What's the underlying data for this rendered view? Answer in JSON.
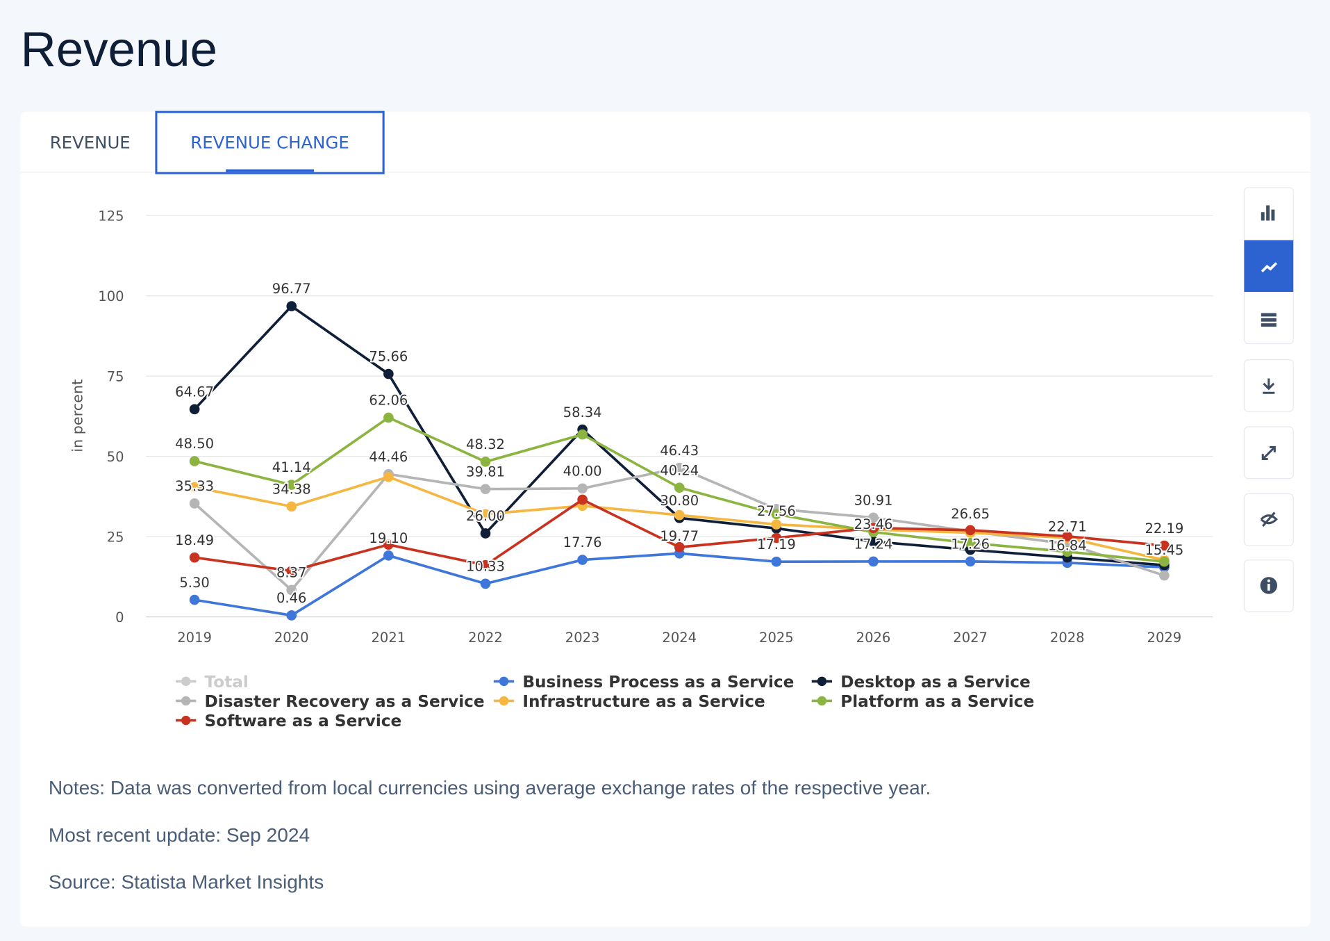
{
  "page_title": "Revenue",
  "tabs": [
    "REVENUE",
    "REVENUE CHANGE"
  ],
  "chart_data": {
    "type": "line",
    "y_label": "in percent",
    "categories": [
      "2019",
      "2020",
      "2021",
      "2022",
      "2023",
      "2024",
      "2025",
      "2026",
      "2027",
      "2028",
      "2029"
    ],
    "ylim": [
      0,
      125
    ],
    "yticks": [
      0,
      25,
      50,
      75,
      100,
      125
    ],
    "grid": true,
    "series": [
      {
        "name": "Total",
        "color": "#cccccc",
        "visible": false
      },
      {
        "name": "Business Process as a Service",
        "color": "#3f76d9",
        "values": [
          5.3,
          0.46,
          19.1,
          10.33,
          17.76,
          19.77,
          17.19,
          17.24,
          17.26,
          16.84,
          15.45
        ],
        "value_labels": [
          "5.30",
          "0.46",
          "19.10",
          "10.33",
          "17.76",
          "19.77",
          "17.19",
          "17.24",
          "17.26",
          "16.84",
          "15.45"
        ]
      },
      {
        "name": "Desktop as a Service",
        "color": "#0f1f38",
        "values": [
          64.67,
          96.77,
          75.66,
          26.0,
          58.34,
          30.8,
          27.56,
          23.46,
          20.9,
          18.5,
          16.1
        ],
        "value_labels": [
          "64.67",
          "96.77",
          "75.66",
          "26.00",
          "58.34",
          "30.80",
          "27.56",
          "23.46",
          null,
          null,
          null
        ]
      },
      {
        "name": "Disaster Recovery as a Service",
        "color": "#b5b5b5",
        "values": [
          35.33,
          8.37,
          44.46,
          39.81,
          40.0,
          46.43,
          33.6,
          30.91,
          26.65,
          22.71,
          12.9
        ],
        "value_labels": [
          "35.33",
          "8.37",
          "44.46",
          "39.81",
          "40.00",
          "46.43",
          null,
          "30.91",
          "26.65",
          "22.71",
          null
        ]
      },
      {
        "name": "Infrastructure as a Service",
        "color": "#f5b742",
        "values": [
          40.4,
          34.38,
          43.6,
          32,
          34.6,
          31.7,
          28.8,
          27.2,
          26.2,
          24.6,
          17.7
        ],
        "value_labels": [
          null,
          "34.38",
          null,
          null,
          null,
          null,
          null,
          null,
          null,
          null,
          null
        ]
      },
      {
        "name": "Platform as a Service",
        "color": "#8bb540",
        "values": [
          48.5,
          41.14,
          62.06,
          48.32,
          56.8,
          40.24,
          32,
          26.4,
          23,
          20.3,
          17.2
        ],
        "value_labels": [
          "48.50",
          "41.14",
          "62.06",
          "48.32",
          null,
          "40.24",
          null,
          null,
          null,
          null,
          null
        ]
      },
      {
        "name": "Software as a Service",
        "color": "#c8321f",
        "values": [
          18.49,
          14.3,
          22.5,
          16.1,
          36.5,
          21.7,
          24.6,
          27.7,
          27,
          25.1,
          22.19
        ],
        "value_labels": [
          "18.49",
          null,
          null,
          null,
          null,
          null,
          null,
          null,
          null,
          null,
          "22.19"
        ]
      }
    ]
  },
  "notes": [
    "Notes: Data was converted from local currencies using average exchange rates of the respective year.",
    "Most recent update: Sep 2024",
    "Source: Statista Market Insights"
  ]
}
